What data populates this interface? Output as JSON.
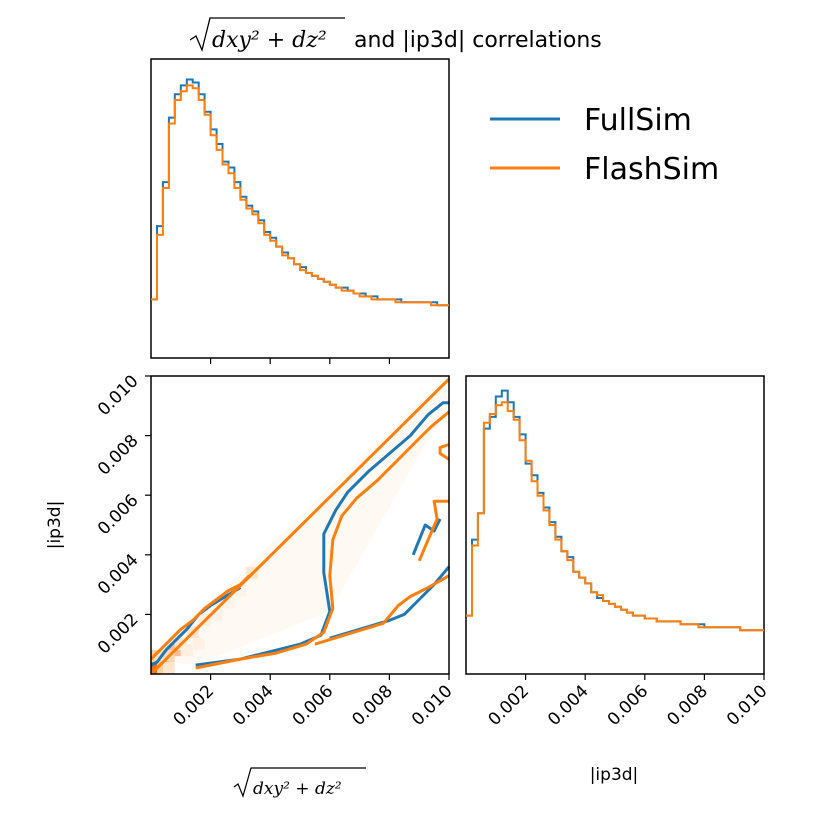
{
  "chart_data": [
    {
      "id": "marginal-x",
      "type": "histogram-step",
      "x": [
        0.0,
        0.0002,
        0.0004,
        0.0006,
        0.0008,
        0.001,
        0.0012,
        0.0014,
        0.0016,
        0.0018,
        0.002,
        0.0022,
        0.0024,
        0.0026,
        0.0028,
        0.003,
        0.0032,
        0.0034,
        0.0036,
        0.0038,
        0.004,
        0.0042,
        0.0044,
        0.0046,
        0.0048,
        0.005,
        0.0052,
        0.0054,
        0.0056,
        0.0058,
        0.006,
        0.0062,
        0.0064,
        0.0066,
        0.0068,
        0.007,
        0.0072,
        0.0074,
        0.0076,
        0.0078,
        0.008,
        0.0082,
        0.0084,
        0.0086,
        0.0088,
        0.009,
        0.0092,
        0.0094,
        0.0096,
        0.0098
      ],
      "xlim": [
        0,
        0.01
      ],
      "series": [
        {
          "name": "FullSim",
          "color": "#1f77b4",
          "values": [
            0.2,
            0.45,
            0.6,
            0.82,
            0.9,
            0.93,
            0.95,
            0.94,
            0.9,
            0.84,
            0.78,
            0.73,
            0.67,
            0.65,
            0.6,
            0.55,
            0.52,
            0.5,
            0.47,
            0.43,
            0.41,
            0.38,
            0.36,
            0.34,
            0.32,
            0.31,
            0.29,
            0.28,
            0.27,
            0.26,
            0.25,
            0.24,
            0.24,
            0.23,
            0.22,
            0.22,
            0.21,
            0.21,
            0.2,
            0.2,
            0.2,
            0.2,
            0.19,
            0.19,
            0.19,
            0.19,
            0.19,
            0.19,
            0.18,
            0.18
          ]
        },
        {
          "name": "FlashSim",
          "color": "#ff7f0e",
          "values": [
            0.2,
            0.42,
            0.58,
            0.8,
            0.88,
            0.91,
            0.93,
            0.92,
            0.88,
            0.83,
            0.76,
            0.71,
            0.66,
            0.63,
            0.58,
            0.54,
            0.51,
            0.49,
            0.46,
            0.42,
            0.4,
            0.38,
            0.35,
            0.34,
            0.32,
            0.3,
            0.29,
            0.28,
            0.27,
            0.26,
            0.25,
            0.24,
            0.23,
            0.23,
            0.22,
            0.21,
            0.21,
            0.2,
            0.2,
            0.2,
            0.2,
            0.19,
            0.19,
            0.19,
            0.19,
            0.19,
            0.19,
            0.18,
            0.18,
            0.18
          ]
        }
      ]
    },
    {
      "id": "joint",
      "type": "contour",
      "xlim": [
        0,
        0.01
      ],
      "ylim": [
        0,
        0.01
      ],
      "x_ticks": [
        "0.002",
        "0.004",
        "0.006",
        "0.008",
        "0.010"
      ],
      "y_ticks": [
        "0.002",
        "0.004",
        "0.006",
        "0.008",
        "0.010"
      ],
      "ylabel": "|ip3d|",
      "series": [
        {
          "name": "FullSim",
          "color": "#1f77b4",
          "contours": [
            [
              [
                0.0,
                0.0003
              ],
              [
                0.0002,
                0.0004
              ],
              [
                0.0005,
                0.0008
              ],
              [
                0.0008,
                0.0011
              ],
              [
                0.0012,
                0.0015
              ],
              [
                0.0016,
                0.002
              ],
              [
                0.002,
                0.0023
              ],
              [
                0.0025,
                0.0026
              ],
              [
                0.003,
                0.0029
              ]
            ],
            [
              [
                0.0015,
                0.0003
              ],
              [
                0.003,
                0.0005
              ],
              [
                0.0042,
                0.0008
              ],
              [
                0.005,
                0.001
              ],
              [
                0.0057,
                0.0013
              ],
              [
                0.006,
                0.0021
              ],
              [
                0.0058,
                0.0034
              ],
              [
                0.0058,
                0.0047
              ],
              [
                0.0062,
                0.0055
              ],
              [
                0.0066,
                0.0061
              ],
              [
                0.0073,
                0.0068
              ],
              [
                0.008,
                0.0074
              ],
              [
                0.0087,
                0.008
              ],
              [
                0.0093,
                0.0087
              ],
              [
                0.0098,
                0.0091
              ],
              [
                0.01,
                0.0091
              ]
            ],
            [
              [
                0.006,
                0.0012
              ],
              [
                0.007,
                0.0015
              ],
              [
                0.008,
                0.0018
              ],
              [
                0.0085,
                0.002
              ],
              [
                0.009,
                0.0025
              ],
              [
                0.0095,
                0.003
              ],
              [
                0.01,
                0.0036
              ]
            ],
            [
              [
                0.0088,
                0.004
              ],
              [
                0.009,
                0.0045
              ],
              [
                0.0092,
                0.005
              ],
              [
                0.0095,
                0.0048
              ],
              [
                0.0097,
                0.0052
              ]
            ]
          ]
        },
        {
          "name": "FlashSim",
          "color": "#ff7f0e",
          "contours": [
            [
              [
                0.0,
                0.0005
              ],
              [
                0.0003,
                0.0008
              ],
              [
                0.0006,
                0.0011
              ],
              [
                0.001,
                0.0015
              ],
              [
                0.0014,
                0.0018
              ],
              [
                0.0018,
                0.0022
              ],
              [
                0.0022,
                0.0025
              ],
              [
                0.0026,
                0.0028
              ],
              [
                0.003,
                0.003
              ],
              [
                0.0033,
                0.0033
              ]
            ],
            [
              [
                0.0015,
                0.0002
              ],
              [
                0.003,
                0.0005
              ],
              [
                0.0042,
                0.0007
              ],
              [
                0.0052,
                0.001
              ],
              [
                0.0058,
                0.0014
              ],
              [
                0.0061,
                0.0022
              ],
              [
                0.006,
                0.0033
              ],
              [
                0.0061,
                0.0045
              ],
              [
                0.0064,
                0.0053
              ],
              [
                0.0069,
                0.0059
              ],
              [
                0.0076,
                0.0065
              ],
              [
                0.0082,
                0.0071
              ],
              [
                0.0088,
                0.0077
              ],
              [
                0.0094,
                0.0083
              ],
              [
                0.01,
                0.0088
              ]
            ],
            [
              [
                0.0055,
                0.001
              ],
              [
                0.0068,
                0.0014
              ],
              [
                0.0078,
                0.0017
              ],
              [
                0.0083,
                0.0023
              ],
              [
                0.0087,
                0.0026
              ],
              [
                0.0093,
                0.0029
              ],
              [
                0.01,
                0.0033
              ]
            ],
            [
              [
                0.009,
                0.0038
              ],
              [
                0.0093,
                0.0045
              ],
              [
                0.0096,
                0.0052
              ],
              [
                0.0095,
                0.0058
              ],
              [
                0.01,
                0.0058
              ]
            ],
            [
              [
                0.01,
                0.0072
              ],
              [
                0.0097,
                0.0074
              ],
              [
                0.0097,
                0.0076
              ],
              [
                0.01,
                0.0077
              ]
            ],
            [
              [
                0.0,
                0.0
              ],
              [
                0.01,
                0.0099
              ]
            ]
          ]
        }
      ]
    },
    {
      "id": "marginal-y",
      "type": "histogram-step",
      "x": [
        0.0,
        0.0002,
        0.0004,
        0.0006,
        0.0008,
        0.001,
        0.0012,
        0.0014,
        0.0016,
        0.0018,
        0.002,
        0.0022,
        0.0024,
        0.0026,
        0.0028,
        0.003,
        0.0032,
        0.0034,
        0.0036,
        0.0038,
        0.004,
        0.0042,
        0.0044,
        0.0046,
        0.0048,
        0.005,
        0.0052,
        0.0054,
        0.0056,
        0.0058,
        0.006,
        0.0062,
        0.0064,
        0.0066,
        0.0068,
        0.007,
        0.0072,
        0.0074,
        0.0076,
        0.0078,
        0.008,
        0.0082,
        0.0084,
        0.0086,
        0.0088,
        0.009,
        0.0092,
        0.0094,
        0.0096,
        0.0098
      ],
      "xlim": [
        0,
        0.01
      ],
      "x_ticks": [
        "0.002",
        "0.004",
        "0.006",
        "0.008",
        "0.010"
      ],
      "xlabel": "|ip3d|",
      "series": [
        {
          "name": "FullSim",
          "color": "#1f77b4",
          "values": [
            0.2,
            0.46,
            0.55,
            0.84,
            0.88,
            0.95,
            0.97,
            0.93,
            0.88,
            0.82,
            0.72,
            0.68,
            0.62,
            0.57,
            0.52,
            0.47,
            0.42,
            0.4,
            0.35,
            0.33,
            0.31,
            0.28,
            0.26,
            0.25,
            0.24,
            0.23,
            0.22,
            0.21,
            0.2,
            0.2,
            0.19,
            0.19,
            0.18,
            0.18,
            0.18,
            0.18,
            0.17,
            0.17,
            0.17,
            0.17,
            0.16,
            0.16,
            0.16,
            0.16,
            0.16,
            0.16,
            0.15,
            0.15,
            0.15,
            0.15
          ]
        },
        {
          "name": "FlashSim",
          "color": "#ff7f0e",
          "values": [
            0.2,
            0.44,
            0.55,
            0.86,
            0.89,
            0.92,
            0.93,
            0.9,
            0.87,
            0.8,
            0.73,
            0.66,
            0.61,
            0.56,
            0.51,
            0.46,
            0.42,
            0.39,
            0.35,
            0.33,
            0.31,
            0.28,
            0.27,
            0.25,
            0.24,
            0.23,
            0.22,
            0.21,
            0.2,
            0.2,
            0.19,
            0.19,
            0.18,
            0.18,
            0.18,
            0.18,
            0.17,
            0.17,
            0.17,
            0.16,
            0.16,
            0.16,
            0.16,
            0.16,
            0.16,
            0.16,
            0.15,
            0.15,
            0.15,
            0.15
          ]
        }
      ]
    }
  ],
  "legend": {
    "entries": [
      {
        "name": "FullSim",
        "color": "#1f77b4"
      },
      {
        "name": "FlashSim",
        "color": "#ff7f0e"
      }
    ],
    "placement": "top-right"
  },
  "labels": {
    "title_suffix": "and |ip3d| correlations",
    "xlabel_math": "dxy² + dz²"
  }
}
